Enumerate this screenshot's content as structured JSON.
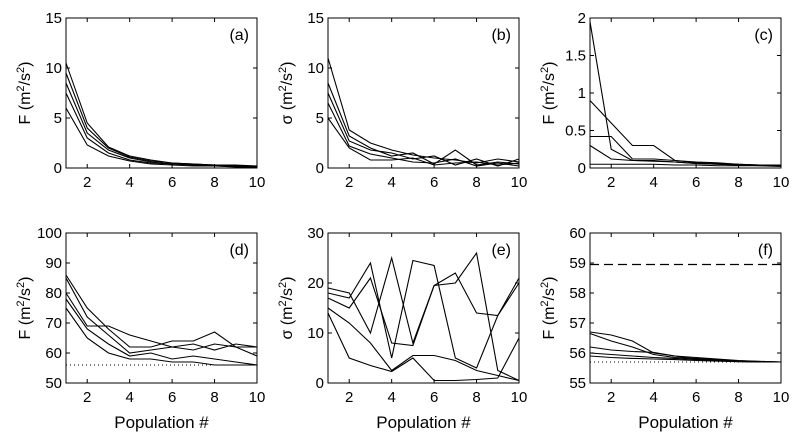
{
  "chart_data": [
    {
      "type": "line",
      "panel_label": "(a)",
      "ylabel_main": "F",
      "ylabel_unit": "(m",
      "ylabel_sup": "2",
      "ylabel_unit2": "/s",
      "ylabel_sup2": "2",
      "ylabel_close": ")",
      "xlabel": "",
      "xlim": [
        1,
        10
      ],
      "ylim": [
        0,
        15
      ],
      "xticks": [
        2,
        4,
        6,
        8,
        10
      ],
      "yticks": [
        0,
        5,
        10,
        15
      ],
      "x": [
        1,
        2,
        3,
        4,
        5,
        6,
        7,
        8,
        9,
        10
      ],
      "series": [
        {
          "values": [
            10.5,
            4.5,
            2.1,
            1.2,
            0.8,
            0.5,
            0.4,
            0.3,
            0.2,
            0.2
          ]
        },
        {
          "values": [
            9.5,
            4.0,
            2.0,
            1.1,
            0.7,
            0.5,
            0.4,
            0.3,
            0.3,
            0.2
          ]
        },
        {
          "values": [
            8.5,
            3.5,
            1.8,
            1.0,
            0.6,
            0.4,
            0.3,
            0.3,
            0.2,
            0.2
          ]
        },
        {
          "values": [
            7.5,
            3.0,
            1.5,
            0.8,
            0.5,
            0.4,
            0.3,
            0.2,
            0.2,
            0.1
          ]
        },
        {
          "values": [
            6.0,
            2.3,
            1.2,
            0.7,
            0.4,
            0.3,
            0.2,
            0.2,
            0.1,
            0.1
          ]
        }
      ],
      "grid": false
    },
    {
      "type": "line",
      "panel_label": "(b)",
      "ylabel_main": "σ",
      "ylabel_unit": "(m",
      "ylabel_sup": "2",
      "ylabel_unit2": "/s",
      "ylabel_sup2": "2",
      "ylabel_close": ")",
      "xlabel": "",
      "xlim": [
        1,
        10
      ],
      "ylim": [
        0,
        15
      ],
      "xticks": [
        2,
        4,
        6,
        8,
        10
      ],
      "yticks": [
        0,
        5,
        10,
        15
      ],
      "x": [
        1,
        2,
        3,
        4,
        5,
        6,
        7,
        8,
        9,
        10
      ],
      "series": [
        {
          "values": [
            11.0,
            3.8,
            2.5,
            1.8,
            1.3,
            1.0,
            0.8,
            0.5,
            0.9,
            0.6
          ]
        },
        {
          "values": [
            8.5,
            3.2,
            2.0,
            1.2,
            1.5,
            0.4,
            1.8,
            0.3,
            0.6,
            0.4
          ]
        },
        {
          "values": [
            7.5,
            2.7,
            1.8,
            1.5,
            0.9,
            1.2,
            0.3,
            0.9,
            0.2,
            0.9
          ]
        },
        {
          "values": [
            6.5,
            2.2,
            1.4,
            1.0,
            0.6,
            0.5,
            0.9,
            0.2,
            0.5,
            0.2
          ]
        },
        {
          "values": [
            5.0,
            2.0,
            0.8,
            0.8,
            1.0,
            0.3,
            0.5,
            0.6,
            0.3,
            0.5
          ]
        }
      ],
      "grid": false
    },
    {
      "type": "line",
      "panel_label": "(c)",
      "ylabel_main": "F",
      "ylabel_unit": "(m",
      "ylabel_sup": "2",
      "ylabel_unit2": "/s",
      "ylabel_sup2": "2",
      "ylabel_close": ")",
      "xlabel": "",
      "xlim": [
        1,
        10
      ],
      "ylim": [
        0,
        2
      ],
      "xticks": [
        2,
        4,
        6,
        8,
        10
      ],
      "yticks": [
        0,
        0.5,
        1,
        1.5,
        2
      ],
      "ytick_labels": [
        "0",
        "0.5",
        "1",
        "1.5",
        "2"
      ],
      "x": [
        1,
        2,
        3,
        4,
        5,
        6,
        7,
        8,
        9,
        10
      ],
      "series": [
        {
          "values": [
            1.95,
            0.25,
            0.1,
            0.1,
            0.08,
            0.06,
            0.05,
            0.04,
            0.04,
            0.03
          ]
        },
        {
          "values": [
            0.9,
            0.6,
            0.3,
            0.3,
            0.1,
            0.08,
            0.07,
            0.05,
            0.04,
            0.04
          ]
        },
        {
          "values": [
            0.42,
            0.42,
            0.12,
            0.12,
            0.1,
            0.07,
            0.06,
            0.05,
            0.04,
            0.03
          ]
        },
        {
          "values": [
            0.3,
            0.12,
            0.1,
            0.09,
            0.08,
            0.06,
            0.05,
            0.04,
            0.03,
            0.03
          ]
        },
        {
          "values": [
            0.05,
            0.05,
            0.05,
            0.05,
            0.04,
            0.04,
            0.03,
            0.03,
            0.03,
            0.02
          ]
        }
      ],
      "grid": false
    },
    {
      "type": "line",
      "panel_label": "(d)",
      "ylabel_main": "F",
      "ylabel_unit": "(m",
      "ylabel_sup": "2",
      "ylabel_unit2": "/s",
      "ylabel_sup2": "2",
      "ylabel_close": ")",
      "xlabel": "Population #",
      "xlim": [
        1,
        10
      ],
      "ylim": [
        50,
        100
      ],
      "xticks": [
        2,
        4,
        6,
        8,
        10
      ],
      "yticks": [
        50,
        60,
        70,
        80,
        90,
        100
      ],
      "x": [
        1,
        2,
        3,
        4,
        5,
        6,
        7,
        8,
        9,
        10
      ],
      "series": [
        {
          "values": [
            86,
            75,
            68,
            62,
            62,
            64,
            64,
            67,
            62,
            62
          ]
        },
        {
          "values": [
            85,
            72,
            66,
            60,
            61,
            62,
            63,
            61,
            63,
            62
          ]
        },
        {
          "values": [
            80,
            69,
            69,
            66,
            64,
            62,
            61,
            63,
            62,
            59
          ]
        },
        {
          "values": [
            78,
            68,
            63,
            59,
            60,
            58,
            59,
            58,
            57,
            56
          ]
        },
        {
          "values": [
            75,
            65,
            60,
            58,
            58,
            57,
            57,
            56,
            56,
            56
          ]
        }
      ],
      "reference_lines": [
        {
          "style": "dotted",
          "y": 56
        }
      ],
      "grid": false
    },
    {
      "type": "line",
      "panel_label": "(e)",
      "ylabel_main": "σ",
      "ylabel_unit": "(m",
      "ylabel_sup": "2",
      "ylabel_unit2": "/s",
      "ylabel_sup2": "2",
      "ylabel_close": ")",
      "xlabel": "Population #",
      "xlim": [
        1,
        10
      ],
      "ylim": [
        0,
        30
      ],
      "xticks": [
        2,
        4,
        6,
        8,
        10
      ],
      "yticks": [
        0,
        10,
        20,
        30
      ],
      "x": [
        1,
        2,
        3,
        4,
        5,
        6,
        7,
        8,
        9,
        10
      ],
      "series": [
        {
          "values": [
            18,
            17,
            24,
            5,
            24.5,
            23.5,
            5,
            3,
            13.5,
            21
          ]
        },
        {
          "values": [
            19,
            18,
            10,
            25,
            8,
            19.5,
            22,
            14,
            13.5,
            20
          ]
        },
        {
          "values": [
            17,
            15,
            21,
            8,
            7.5,
            19.5,
            20,
            26,
            2.5,
            0.5
          ]
        },
        {
          "values": [
            15,
            12,
            8,
            2.5,
            5.5,
            5.5,
            4.5,
            2.5,
            1.5,
            0.5
          ]
        },
        {
          "values": [
            14,
            5,
            3.5,
            2.3,
            5,
            0.5,
            0.5,
            0.7,
            1,
            9
          ]
        }
      ],
      "grid": false
    },
    {
      "type": "line",
      "panel_label": "(f)",
      "ylabel_main": "F",
      "ylabel_unit": "(m",
      "ylabel_sup": "2",
      "ylabel_unit2": "/s",
      "ylabel_sup2": "2",
      "ylabel_close": ")",
      "xlabel": "Population #",
      "xlim": [
        1,
        10
      ],
      "ylim": [
        55,
        60
      ],
      "xticks": [
        2,
        4,
        6,
        8,
        10
      ],
      "yticks": [
        55,
        56,
        57,
        58,
        59,
        60
      ],
      "x": [
        1,
        2,
        3,
        4,
        5,
        6,
        7,
        8,
        9,
        10
      ],
      "series": [
        {
          "values": [
            56.7,
            56.6,
            56.4,
            56.0,
            55.9,
            55.85,
            55.8,
            55.75,
            55.72,
            55.7
          ]
        },
        {
          "values": [
            56.65,
            56.4,
            56.2,
            55.95,
            55.85,
            55.82,
            55.78,
            55.74,
            55.72,
            55.7
          ]
        },
        {
          "values": [
            56.2,
            56.1,
            56.05,
            56.02,
            55.9,
            55.8,
            55.76,
            55.73,
            55.71,
            55.7
          ]
        },
        {
          "values": [
            56.0,
            55.95,
            55.9,
            55.85,
            55.82,
            55.78,
            55.75,
            55.72,
            55.7,
            55.7
          ]
        },
        {
          "values": [
            55.9,
            55.85,
            55.82,
            55.8,
            55.78,
            55.75,
            55.73,
            55.71,
            55.7,
            55.7
          ]
        }
      ],
      "reference_lines": [
        {
          "style": "dashed",
          "y": 58.95
        },
        {
          "style": "dotted",
          "y": 55.7
        }
      ],
      "grid": false
    }
  ]
}
